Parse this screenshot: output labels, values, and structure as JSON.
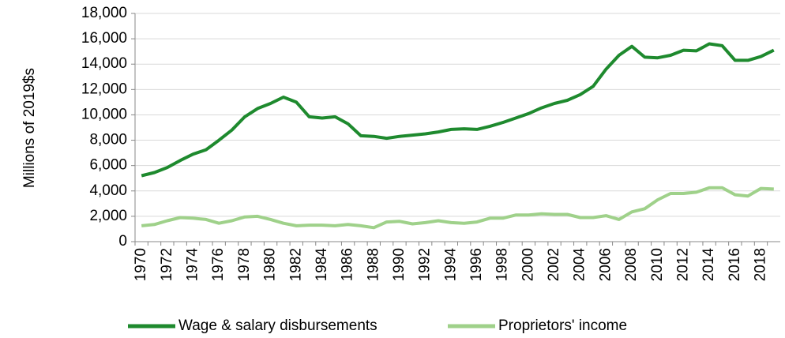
{
  "chart_data": {
    "type": "line",
    "y_label": "Millions of 2019$s",
    "categories": [
      "1970",
      null,
      "1972",
      null,
      "1974",
      null,
      "1976",
      null,
      "1978",
      null,
      "1980",
      null,
      "1982",
      null,
      "1984",
      null,
      "1986",
      null,
      "1988",
      null,
      "1990",
      null,
      "1992",
      null,
      "1994",
      null,
      "1996",
      null,
      "1998",
      null,
      "2000",
      null,
      "2002",
      null,
      "2004",
      null,
      "2006",
      null,
      "2008",
      null,
      "2010",
      null,
      "2012",
      null,
      "2014",
      null,
      "2016",
      null,
      "2018",
      null
    ],
    "series": [
      {
        "name": "Wage & salary disbursements",
        "color": "#1e8a2e",
        "values": [
          5200,
          5450,
          5850,
          6400,
          6900,
          7250,
          8000,
          8800,
          9850,
          10500,
          10900,
          11400,
          11000,
          9850,
          9750,
          9850,
          9300,
          8350,
          8300,
          8150,
          8300,
          8400,
          8500,
          8650,
          8850,
          8900,
          8850,
          9100,
          9400,
          9750,
          10100,
          10550,
          10900,
          11150,
          11600,
          12250,
          13600,
          14700,
          15400,
          14550,
          14500,
          14700,
          15100,
          15050,
          15600,
          15450,
          14300,
          14300,
          14600,
          15100
        ]
      },
      {
        "name": "Proprietors' income",
        "color": "#9fd18a",
        "values": [
          1250,
          1350,
          1650,
          1900,
          1850,
          1750,
          1450,
          1650,
          1950,
          2000,
          1750,
          1450,
          1250,
          1300,
          1300,
          1250,
          1350,
          1250,
          1100,
          1550,
          1600,
          1400,
          1500,
          1650,
          1500,
          1450,
          1550,
          1850,
          1850,
          2100,
          2100,
          2200,
          2150,
          2150,
          1900,
          1900,
          2050,
          1750,
          2350,
          2600,
          3300,
          3800,
          3800,
          3900,
          4250,
          4250,
          3700,
          3600,
          4200,
          4150
        ]
      }
    ],
    "ylim": [
      0,
      18000
    ],
    "yticks": [
      0,
      {
        "value": 2000,
        "label": "2,000"
      },
      {
        "value": 4000,
        "label": "4,000"
      },
      {
        "value": 6000,
        "label": "6,000"
      },
      {
        "value": 8000,
        "label": "8,000"
      },
      {
        "value": 10000,
        "label": "10,000"
      },
      {
        "value": 12000,
        "label": "12,000"
      },
      {
        "value": 14000,
        "label": "14,000"
      },
      {
        "value": 16000,
        "label": "16,000"
      },
      {
        "value": 18000,
        "label": "18,000"
      }
    ],
    "grid": true,
    "legend": "bottom"
  }
}
